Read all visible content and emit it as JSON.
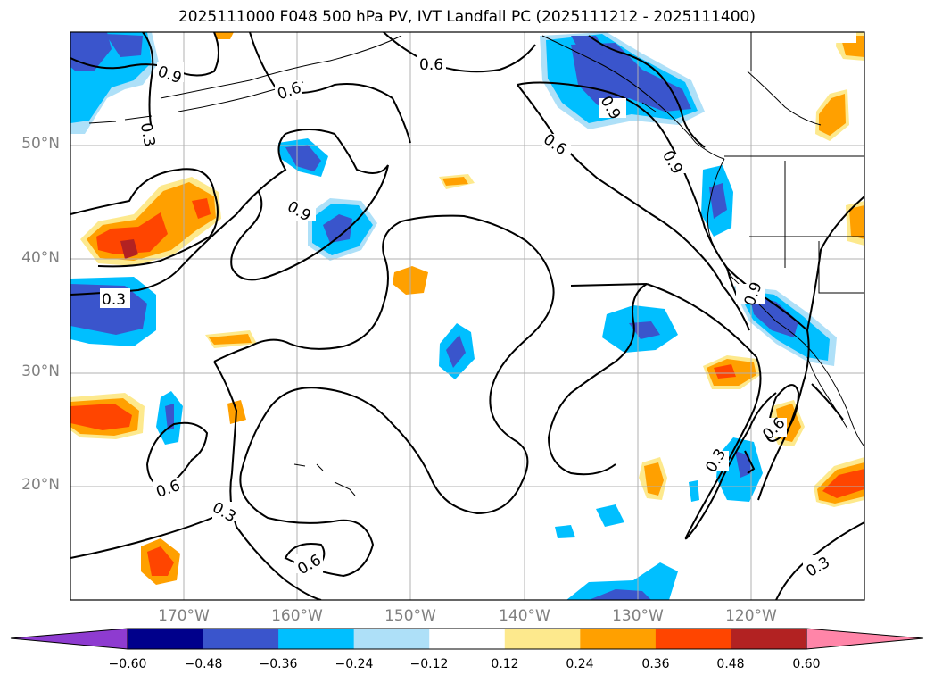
{
  "title": "2025111000 F048 500 hPa PV, IVT Landfall PC (2025111212 - 2025111400)",
  "latitude_labels": [
    "50°N",
    "40°N",
    "30°N",
    "20°N"
  ],
  "longitude_labels": [
    "170°W",
    "160°W",
    "150°W",
    "140°W",
    "130°W",
    "120°W"
  ],
  "colorbar": {
    "ticks": [
      "−0.60",
      "−0.48",
      "−0.36",
      "−0.24",
      "−0.12",
      "0.12",
      "0.24",
      "0.36",
      "0.48",
      "0.60"
    ],
    "colors": [
      "#8e3bd0",
      "#00008b",
      "#3a55cc",
      "#00bfff",
      "#aee0f8",
      "#ffffff",
      "#fde98d",
      "#ffa000",
      "#ff4500",
      "#b22222",
      "#ff85a8"
    ]
  },
  "contour_labels": [
    "0.9",
    "0.6",
    "0.3"
  ],
  "colors": {
    "coast": "#000000",
    "grid": "#b0b0b0",
    "negative_strong": "#3a55cc",
    "negative": "#00bfff",
    "negative_weak": "#aee0f8",
    "positive_weak": "#fde98d",
    "positive": "#ffa000",
    "positive_strong": "#ff4500",
    "positive_max": "#b22222"
  }
}
